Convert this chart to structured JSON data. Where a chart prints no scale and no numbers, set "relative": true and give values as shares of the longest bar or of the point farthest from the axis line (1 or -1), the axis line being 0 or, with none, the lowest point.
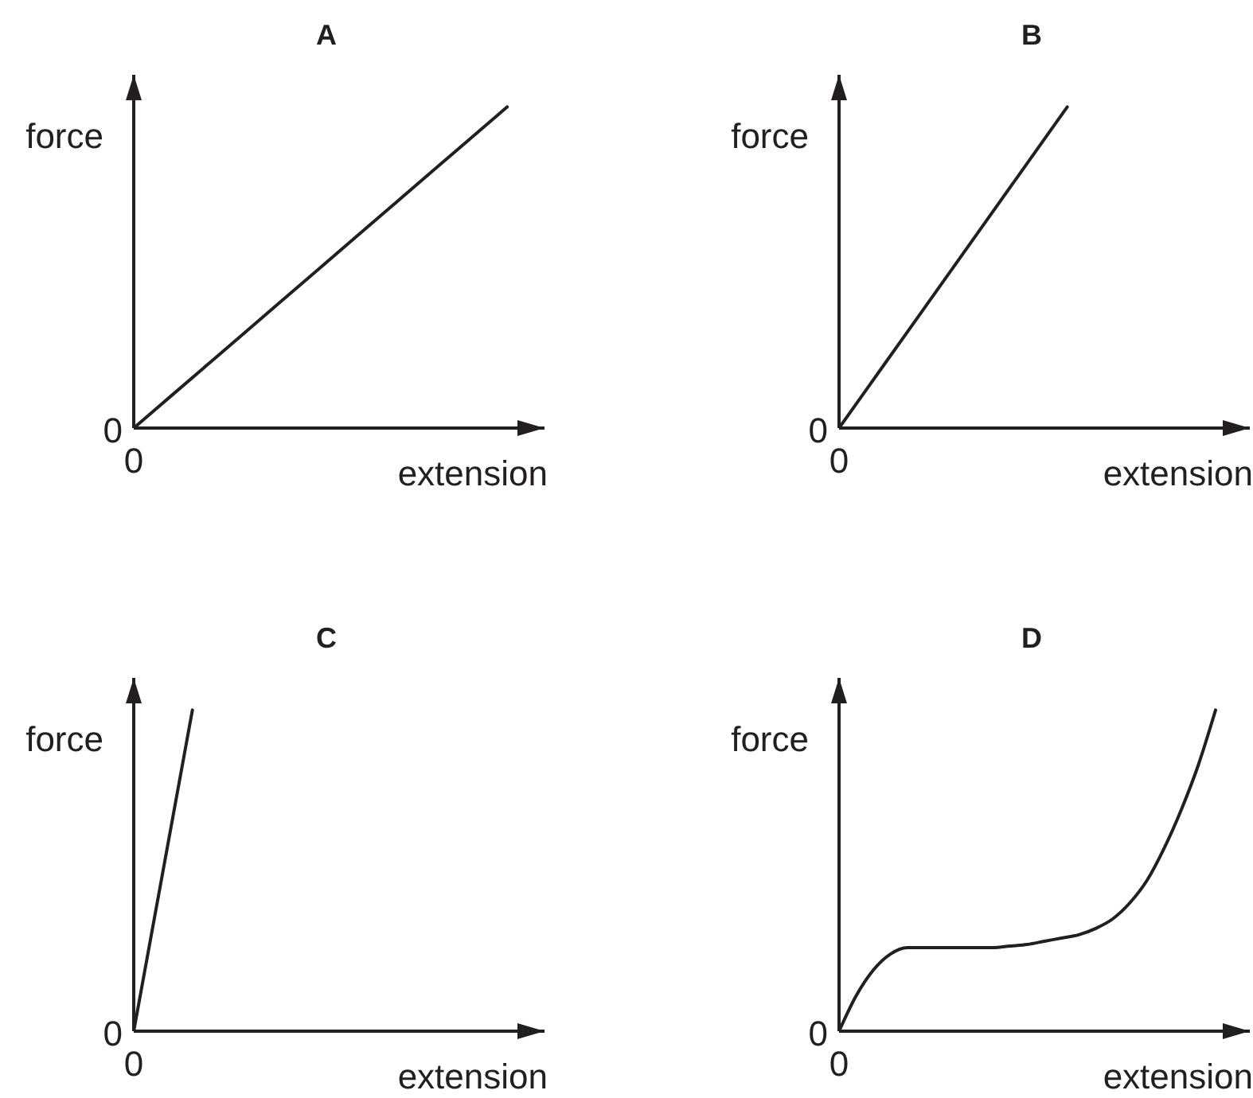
{
  "chart_data": [
    {
      "type": "line",
      "title": "A",
      "xlabel": "extension",
      "ylabel": "force",
      "relative": true,
      "marker": "none",
      "categories": [
        null,
        null,
        null,
        null,
        null,
        null,
        null,
        null,
        null,
        null,
        null,
        null
      ],
      "color": "#231f20",
      "values": [
        0,
        0.1,
        0.2,
        0.3,
        0.4,
        0.5,
        0.6,
        0.7,
        0.8,
        0.9,
        1,
        null
      ],
      "annotations": [
        "0",
        "0"
      ]
    },
    {
      "type": "line",
      "title": "B",
      "xlabel": "extension",
      "ylabel": "force",
      "relative": true,
      "marker": "none",
      "categories": [
        null,
        null,
        null,
        null,
        null,
        null,
        null,
        null,
        null,
        null
      ],
      "color": "#231f20",
      "values": [
        0,
        0.2,
        0.4,
        0.6,
        0.8,
        1,
        null,
        null,
        null,
        null
      ],
      "annotations": [
        "0",
        "0"
      ]
    },
    {
      "type": "line",
      "title": "C",
      "xlabel": "extension",
      "ylabel": "force",
      "relative": true,
      "marker": "none",
      "categories": [
        null,
        null,
        null,
        null,
        null,
        null,
        null,
        null
      ],
      "color": "#231f20",
      "values": [
        0,
        1,
        null,
        null,
        null,
        null,
        null,
        null
      ],
      "annotations": [
        "0",
        "0"
      ]
    },
    {
      "type": "line",
      "title": "D",
      "xlabel": "extension",
      "ylabel": "force",
      "relative": true,
      "marker": "none",
      "categories": [
        null,
        null,
        null,
        null,
        null,
        null,
        null,
        null,
        null,
        null,
        null,
        null,
        null,
        null,
        null,
        null,
        null,
        null,
        null,
        null,
        null,
        null,
        null,
        null,
        null
      ],
      "color": "#231f20",
      "values": [
        0,
        0.11,
        0.19,
        0.24,
        0.26,
        0.26,
        0.26,
        0.26,
        0.26,
        0.26,
        0.265,
        0.27,
        0.28,
        0.29,
        0.3,
        0.32,
        0.35,
        0.4,
        0.47,
        0.57,
        0.69,
        0.83,
        1,
        null,
        null
      ],
      "annotations": [
        "0",
        "0"
      ]
    }
  ]
}
